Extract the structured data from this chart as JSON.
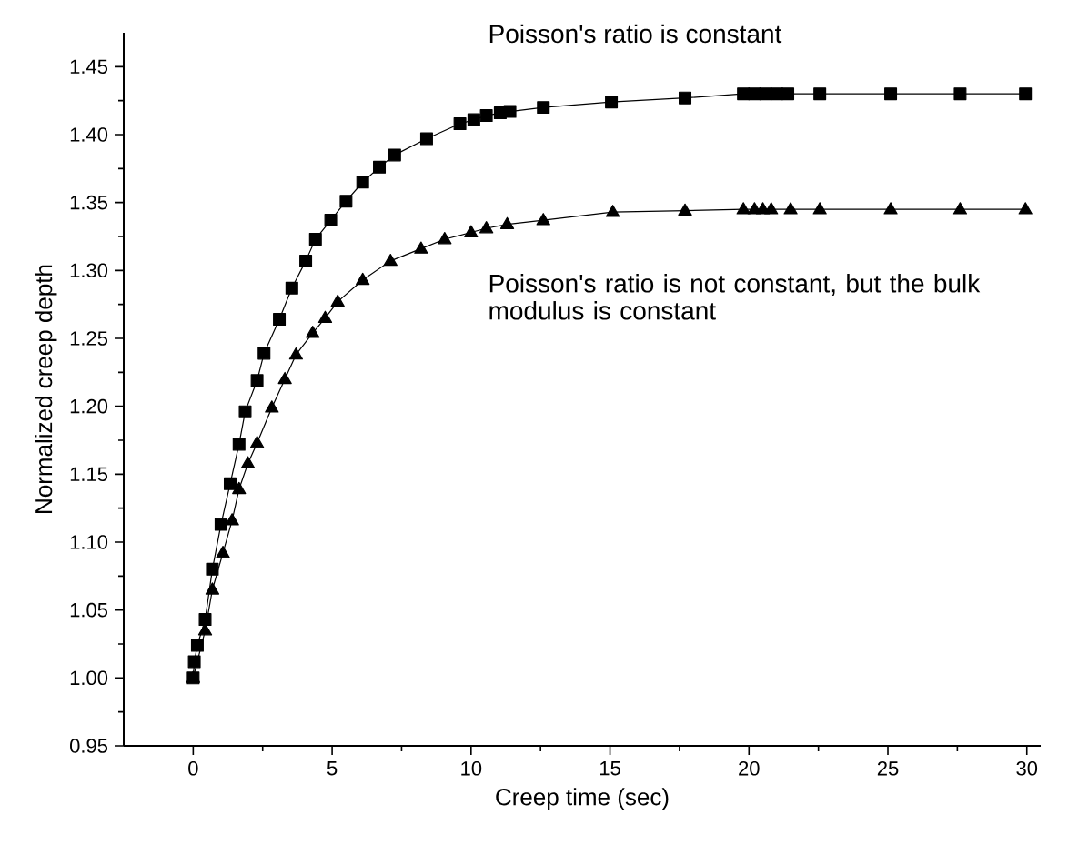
{
  "chart_data": {
    "type": "line",
    "xlabel": "Creep time (sec)",
    "ylabel": "Normalized creep depth",
    "xlim": [
      -2.5,
      30.5
    ],
    "xticks": [
      0,
      5,
      10,
      15,
      20,
      25,
      30
    ],
    "ylim": [
      0.95,
      1.475
    ],
    "yticks": [
      {
        "value": 0.95,
        "label": "0.95"
      },
      {
        "value": 1.0,
        "label": "1.00"
      },
      {
        "value": 1.05,
        "label": "1.05"
      },
      {
        "value": 1.1,
        "label": "1.10"
      },
      {
        "value": 1.15,
        "label": "1.15"
      },
      {
        "value": 1.2,
        "label": "1.20"
      },
      {
        "value": 1.25,
        "label": "1.25"
      },
      {
        "value": 1.3,
        "label": "1.30"
      },
      {
        "value": 1.35,
        "label": "1.35"
      },
      {
        "value": 1.4,
        "label": "1.40"
      },
      {
        "value": 1.45,
        "label": "1.45"
      }
    ],
    "grid": false,
    "legend": false,
    "line_style": "solid",
    "series": [
      {
        "name": "Poisson's ratio is constant",
        "color": "#000000",
        "marker": "square",
        "x": [
          0,
          0.04,
          0.15,
          0.43,
          0.69,
          1.0,
          1.33,
          1.65,
          1.87,
          2.3,
          2.55,
          3.1,
          3.55,
          4.05,
          4.4,
          4.95,
          5.5,
          6.1,
          6.7,
          7.25,
          8.4,
          9.6,
          10.1,
          10.55,
          11.05,
          11.4,
          12.6,
          15.05,
          17.7,
          19.8,
          20.2,
          20.6,
          21.0,
          21.4,
          22.55,
          25.1,
          27.6,
          29.95
        ],
        "values": [
          1.0,
          1.012,
          1.024,
          1.043,
          1.08,
          1.113,
          1.143,
          1.172,
          1.196,
          1.219,
          1.239,
          1.264,
          1.287,
          1.307,
          1.323,
          1.337,
          1.351,
          1.365,
          1.376,
          1.385,
          1.397,
          1.408,
          1.411,
          1.414,
          1.416,
          1.417,
          1.42,
          1.424,
          1.427,
          1.43,
          1.43,
          1.43,
          1.43,
          1.43,
          1.43,
          1.43,
          1.43,
          1.43
        ]
      },
      {
        "name": "Poisson's ratio is not constant, but the bulk modulus is constant",
        "color": "#000000",
        "marker": "triangle",
        "x": [
          0,
          0.43,
          0.69,
          1.07,
          1.4,
          1.65,
          1.97,
          2.3,
          2.83,
          3.3,
          3.7,
          4.3,
          4.75,
          5.2,
          6.1,
          7.1,
          8.2,
          9.05,
          10.0,
          10.55,
          11.3,
          12.6,
          15.1,
          17.7,
          19.8,
          20.2,
          20.5,
          20.8,
          21.5,
          22.55,
          25.1,
          27.6,
          29.95
        ],
        "values": [
          1.0,
          1.035,
          1.065,
          1.092,
          1.116,
          1.139,
          1.158,
          1.173,
          1.199,
          1.22,
          1.238,
          1.254,
          1.265,
          1.277,
          1.293,
          1.307,
          1.316,
          1.323,
          1.328,
          1.331,
          1.334,
          1.337,
          1.343,
          1.344,
          1.345,
          1.345,
          1.345,
          1.345,
          1.345,
          1.345,
          1.345,
          1.345,
          1.345
        ]
      }
    ]
  }
}
